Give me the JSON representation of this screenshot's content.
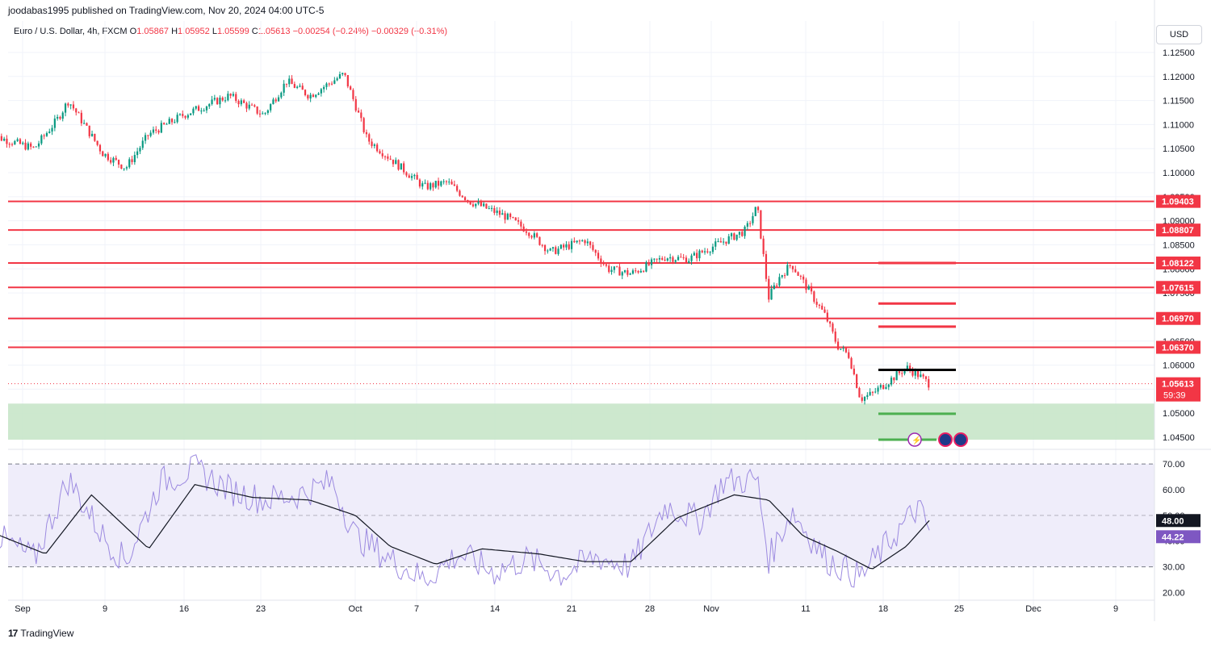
{
  "header": {
    "published_text": "joodabas1995 published on TradingView.com, Nov 20, 2024 04:00 UTC-5",
    "currency_button": "USD"
  },
  "symbol_info": {
    "name": "Euro / U.S. Dollar, 4h, FXCM",
    "open_label": "O",
    "open": "1.05867",
    "high_label": "H",
    "high": "1.05952",
    "low_label": "L",
    "low": "1.05599",
    "close_label": "C",
    "close": "1.05613",
    "change": "−0.00254 (−0.24%)",
    "change2": "−0.00329 (−0.31%)"
  },
  "footer": {
    "brand": "TradingView"
  },
  "colors": {
    "up": "#089981",
    "down": "#f23645",
    "level_line": "#f23645",
    "zone_fill": "#c8e6c9",
    "rsi_line": "#9c8ae0",
    "rsi_ma": "#131722",
    "rsi_band": "#efedfa",
    "target_green": "#4caf50"
  },
  "chart_data": [
    {
      "type": "candlestick",
      "title": "Euro / U.S. Dollar, 4h, FXCM",
      "x_ticks": [
        "Sep",
        "9",
        "16",
        "23",
        "Oct",
        "7",
        "14",
        "21",
        "28",
        "Nov",
        "11",
        "18",
        "25",
        "Dec",
        "9"
      ],
      "y_ticks": [
        "1.12500",
        "1.12000",
        "1.11500",
        "1.11000",
        "1.10500",
        "1.10000",
        "1.09500",
        "1.09000",
        "1.08500",
        "1.08000",
        "1.07500",
        "1.07000",
        "1.06500",
        "1.06000",
        "1.05500",
        "1.05000",
        "1.04500"
      ],
      "ylim": [
        1.044,
        1.1265
      ],
      "last_price": "1.05613",
      "countdown": "59:39",
      "price_path": [
        [
          "2024-08-30",
          1.108
        ],
        [
          "2024-09-03",
          1.105
        ],
        [
          "2024-09-05",
          1.111
        ],
        [
          "2024-09-06",
          1.115
        ],
        [
          "2024-09-09",
          1.104
        ],
        [
          "2024-09-11",
          1.101
        ],
        [
          "2024-09-13",
          1.108
        ],
        [
          "2024-09-16",
          1.112
        ],
        [
          "2024-09-18",
          1.114
        ],
        [
          "2024-09-20",
          1.116
        ],
        [
          "2024-09-23",
          1.112
        ],
        [
          "2024-09-25",
          1.119
        ],
        [
          "2024-09-27",
          1.116
        ],
        [
          "2024-09-30",
          1.1205
        ],
        [
          "2024-10-01",
          1.114
        ],
        [
          "2024-10-02",
          1.107
        ],
        [
          "2024-10-04",
          1.103
        ],
        [
          "2024-10-07",
          1.097
        ],
        [
          "2024-10-09",
          1.098
        ],
        [
          "2024-10-11",
          1.094
        ],
        [
          "2024-10-14",
          1.091
        ],
        [
          "2024-10-16",
          1.088
        ],
        [
          "2024-10-18",
          1.0835
        ],
        [
          "2024-10-21",
          1.086
        ],
        [
          "2024-10-23",
          1.08
        ],
        [
          "2024-10-25",
          1.079
        ],
        [
          "2024-10-28",
          1.0825
        ],
        [
          "2024-10-30",
          1.082
        ],
        [
          "2024-11-01",
          1.0845
        ],
        [
          "2024-11-04",
          1.088
        ],
        [
          "2024-11-05",
          1.093
        ],
        [
          "2024-11-06",
          1.074
        ],
        [
          "2024-11-07",
          1.0785
        ],
        [
          "2024-11-08",
          1.081
        ],
        [
          "2024-11-11",
          1.07
        ],
        [
          "2024-11-12",
          1.064
        ],
        [
          "2024-11-13",
          1.062
        ],
        [
          "2024-11-14",
          1.053
        ],
        [
          "2024-11-15",
          1.054
        ],
        [
          "2024-11-18",
          1.0595
        ],
        [
          "2024-11-19",
          1.058
        ],
        [
          "2024-11-20",
          1.0561
        ]
      ],
      "horizontal_levels": [
        "1.09403",
        "1.08807",
        "1.08122",
        "1.07615",
        "1.06970",
        "1.06370"
      ],
      "projected_levels": [
        1.08122,
        1.0728,
        1.068,
        1.059,
        1.0499,
        1.0445
      ],
      "support_zone": [
        1.0445,
        1.052
      ]
    },
    {
      "type": "line",
      "title": "RSI",
      "y_ticks": [
        "70.00",
        "60.00",
        "50.00",
        "40.00",
        "30.00",
        "20.00"
      ],
      "ylim": [
        17,
        71
      ],
      "bands": [
        30,
        70
      ],
      "midline": 50,
      "last_values": {
        "rsi_ma": "48.00",
        "rsi": "44.22"
      },
      "rsi": [
        [
          "2024-08-30",
          44
        ],
        [
          "2024-09-03",
          33
        ],
        [
          "2024-09-06",
          64
        ],
        [
          "2024-09-09",
          42
        ],
        [
          "2024-09-11",
          32
        ],
        [
          "2024-09-14",
          63
        ],
        [
          "2024-09-17",
          68
        ],
        [
          "2024-09-20",
          60
        ],
        [
          "2024-09-23",
          56
        ],
        [
          "2024-09-26",
          58
        ],
        [
          "2024-09-29",
          63
        ],
        [
          "2024-10-01",
          42
        ],
        [
          "2024-10-04",
          33
        ],
        [
          "2024-10-07",
          25
        ],
        [
          "2024-10-10",
          35
        ],
        [
          "2024-10-13",
          28
        ],
        [
          "2024-10-16",
          33
        ],
        [
          "2024-10-19",
          27
        ],
        [
          "2024-10-22",
          34
        ],
        [
          "2024-10-25",
          30
        ],
        [
          "2024-10-28",
          54
        ],
        [
          "2024-10-31",
          48
        ],
        [
          "2024-11-02",
          63
        ],
        [
          "2024-11-05",
          64
        ],
        [
          "2024-11-06",
          33
        ],
        [
          "2024-11-08",
          52
        ],
        [
          "2024-11-11",
          33
        ],
        [
          "2024-11-14",
          26
        ],
        [
          "2024-11-16",
          37
        ],
        [
          "2024-11-19",
          53
        ],
        [
          "2024-11-20",
          44.22
        ]
      ],
      "rsi_ma": [
        [
          "2024-08-30",
          44
        ],
        [
          "2024-09-04",
          35
        ],
        [
          "2024-09-08",
          58
        ],
        [
          "2024-09-13",
          37
        ],
        [
          "2024-09-17",
          62
        ],
        [
          "2024-09-22",
          57
        ],
        [
          "2024-09-27",
          56
        ],
        [
          "2024-10-01",
          50
        ],
        [
          "2024-10-04",
          38
        ],
        [
          "2024-10-08",
          31
        ],
        [
          "2024-10-12",
          37
        ],
        [
          "2024-10-17",
          35
        ],
        [
          "2024-10-21",
          32
        ],
        [
          "2024-10-25",
          32
        ],
        [
          "2024-10-29",
          49
        ],
        [
          "2024-11-03",
          58
        ],
        [
          "2024-11-06",
          56
        ],
        [
          "2024-11-09",
          42
        ],
        [
          "2024-11-12",
          36
        ],
        [
          "2024-11-15",
          29
        ],
        [
          "2024-11-18",
          38
        ],
        [
          "2024-11-20",
          48
        ]
      ]
    }
  ]
}
